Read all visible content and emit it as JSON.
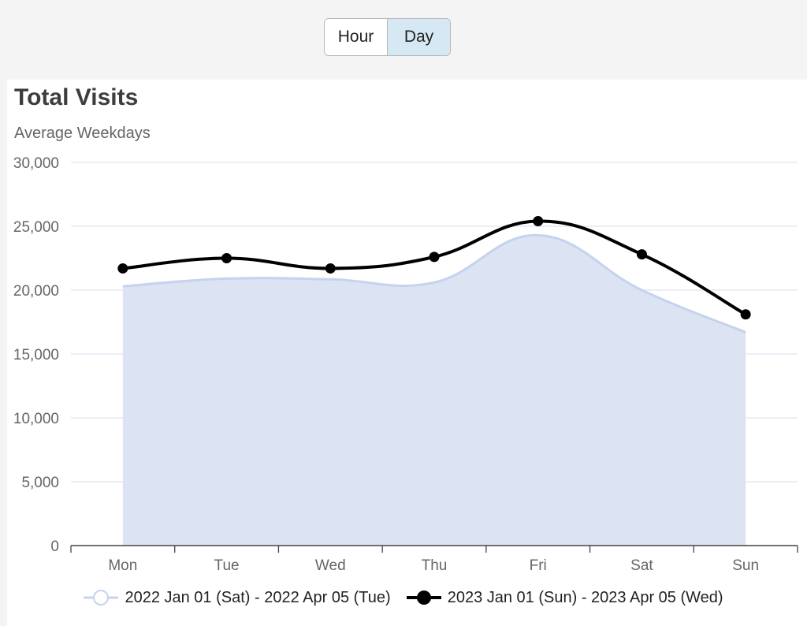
{
  "toggle": {
    "hour_label": "Hour",
    "day_label": "Day",
    "active": "Day"
  },
  "chart_data": {
    "type": "line",
    "title": "Total Visits",
    "subtitle": "Average Weekdays",
    "categories": [
      "Mon",
      "Tue",
      "Wed",
      "Thu",
      "Fri",
      "Sat",
      "Sun"
    ],
    "series": [
      {
        "name": "2022 Jan 01 (Sat) - 2022 Apr 05 (Tue)",
        "style": "area",
        "color": "#c5d3ee",
        "values": [
          20300,
          20900,
          20850,
          20600,
          24300,
          20000,
          16700
        ]
      },
      {
        "name": "2023 Jan 01 (Sun) - 2023 Apr 05 (Wed)",
        "style": "line",
        "color": "#000000",
        "values": [
          21700,
          22500,
          21700,
          22600,
          25400,
          22800,
          18100
        ]
      }
    ],
    "ylim": [
      0,
      30000
    ],
    "yticks": [
      0,
      5000,
      10000,
      15000,
      20000,
      25000,
      30000
    ],
    "ytick_labels": [
      "0",
      "5,000",
      "10,000",
      "15,000",
      "20,000",
      "25,000",
      "30,000"
    ],
    "grid": true,
    "legend_position": "bottom"
  }
}
